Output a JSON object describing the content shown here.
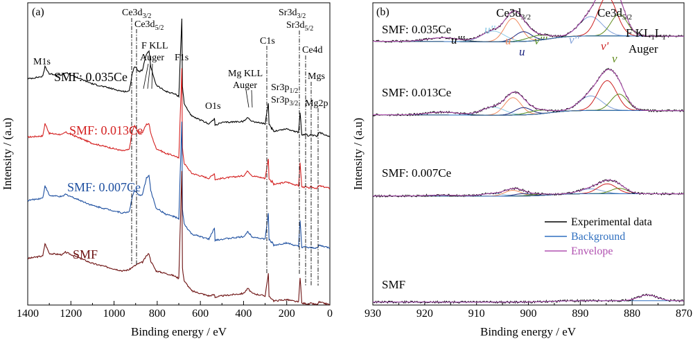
{
  "figure": {
    "panels": [
      {
        "panel_label": "(a)",
        "xlabel": "Binding energy / eV",
        "ylabel": "Intensity / (a.u)",
        "series_labels": [
          "SMF: 0.035Ce",
          "SMF: 0.013Ce",
          "SMF: 0.007Ce",
          "SMF"
        ],
        "peak_annotations": {
          "m1s": "M1s",
          "ce3d32": "Ce3d",
          "ce3d32_sub": "3/2",
          "ce3d52": "Ce3d",
          "ce3d52_sub": "5/2",
          "fkll_line1": "F KLL",
          "fkll_line2": "Auger",
          "f1s": "F1s",
          "o1s": "O1s",
          "mgkll_line1": "Mg KLL",
          "mgkll_line2": "Auger",
          "c1s": "C1s",
          "sr3d32": "Sr3d",
          "sr3d32_sub": "3/2",
          "sr3d52": "Sr3d",
          "sr3d52_sub": "5/2",
          "sr3p12": "Sr3p",
          "sr3p12_sub": "1/2",
          "sr3p32": "Sr3p",
          "sr3p32_sub": "3/2",
          "ce4d": "Ce4d",
          "mgs": "Mgs",
          "mg2p": "Mg2p"
        }
      },
      {
        "panel_label": "(b)",
        "xlabel": "Binding energy / eV",
        "ylabel": "Intensity / (a.u)",
        "series_labels": [
          "SMF: 0.035Ce",
          "SMF: 0.013Ce",
          "SMF: 0.007Ce",
          "SMF"
        ],
        "region_labels": {
          "ce3d32": "Ce3d",
          "ce3d32_sub": "3/2",
          "ce3d52": "Ce3d",
          "ce3d52_sub": "5/2",
          "fkl_main": "F KL",
          "fkl_sub1": "1",
          "fkl_mid": "L",
          "fkl_sub2": "1",
          "fkl_line2": "Auger"
        },
        "component_labels": [
          "u'''",
          "u''",
          "u'",
          "u",
          "v'''",
          "v''",
          "v'",
          "v"
        ],
        "legend": [
          "Experimental data",
          "Background",
          "Envelope"
        ]
      }
    ]
  },
  "colors": {
    "black": "#000000",
    "red": "#d42020",
    "blue": "#1d4fa0",
    "maroon": "#6b0f0f",
    "background_line": "#2f6fbf",
    "envelope": "#b050b0",
    "u3": "#000000",
    "u2": "#8ecae6",
    "u1": "#f08a5d",
    "u0": "#1a237e",
    "v3": "#4e8a1a",
    "v2": "#7f9fd9",
    "v1": "#cc1f1f",
    "v0": "#5f8a1a"
  },
  "chart_data": [
    {
      "type": "line",
      "title": "(a)",
      "xlabel": "Binding energy / eV",
      "ylabel": "Intensity / (a.u)",
      "xlim": [
        1400,
        0
      ],
      "x_reversed": true,
      "xticks": [
        1400,
        1200,
        1000,
        800,
        600,
        400,
        200,
        0
      ],
      "yticks": "none",
      "series": [
        {
          "name": "SMF: 0.035Ce",
          "color": "#000000",
          "offset": 3,
          "x": [
            1400,
            1330,
            1320,
            1300,
            1240,
            1225,
            1100,
            960,
            930,
            915,
            905,
            885,
            868,
            850,
            838,
            830,
            805,
            760,
            720,
            700,
            686,
            683,
            675,
            640,
            560,
            535,
            532,
            500,
            400,
            380,
            360,
            300,
            285,
            282,
            270,
            268,
            260,
            200,
            145,
            138,
            130,
            110,
            100,
            90,
            60,
            50,
            0
          ],
          "y": [
            0.5,
            0.52,
            0.6,
            0.54,
            0.53,
            0.55,
            0.46,
            0.4,
            0.4,
            0.55,
            0.6,
            0.56,
            0.57,
            0.7,
            0.72,
            0.6,
            0.45,
            0.4,
            0.38,
            0.36,
            0.98,
            0.44,
            0.3,
            0.2,
            0.14,
            0.18,
            0.13,
            0.15,
            0.16,
            0.19,
            0.16,
            0.14,
            0.3,
            0.14,
            0.1,
            0.11,
            0.08,
            0.1,
            0.07,
            0.23,
            0.05,
            0.06,
            0.04,
            0.05,
            0.04,
            0.07,
            0.04
          ]
        },
        {
          "name": "SMF: 0.013Ce",
          "color": "#d42020",
          "offset": 2,
          "x": [
            1400,
            1330,
            1320,
            1300,
            1240,
            1225,
            1100,
            960,
            930,
            915,
            905,
            885,
            868,
            850,
            838,
            830,
            805,
            760,
            720,
            700,
            686,
            683,
            675,
            640,
            560,
            535,
            532,
            500,
            400,
            380,
            360,
            300,
            285,
            282,
            270,
            268,
            260,
            200,
            145,
            138,
            130,
            110,
            100,
            90,
            60,
            50,
            0
          ],
          "y": [
            0.45,
            0.46,
            0.56,
            0.48,
            0.47,
            0.49,
            0.4,
            0.34,
            0.35,
            0.5,
            0.54,
            0.48,
            0.49,
            0.55,
            0.56,
            0.48,
            0.36,
            0.32,
            0.3,
            0.28,
            1.0,
            0.36,
            0.24,
            0.16,
            0.12,
            0.16,
            0.11,
            0.12,
            0.14,
            0.18,
            0.14,
            0.12,
            0.28,
            0.12,
            0.09,
            0.1,
            0.07,
            0.09,
            0.06,
            0.24,
            0.05,
            0.05,
            0.04,
            0.05,
            0.04,
            0.06,
            0.04
          ]
        },
        {
          "name": "SMF: 0.007Ce",
          "color": "#1d4fa0",
          "offset": 1,
          "x": [
            1400,
            1330,
            1320,
            1300,
            1240,
            1225,
            1100,
            960,
            930,
            915,
            905,
            885,
            868,
            850,
            838,
            830,
            805,
            760,
            720,
            700,
            686,
            683,
            675,
            640,
            560,
            535,
            532,
            500,
            400,
            380,
            360,
            300,
            285,
            282,
            270,
            268,
            260,
            200,
            145,
            138,
            130,
            110,
            100,
            90,
            60,
            50,
            0
          ],
          "y": [
            0.42,
            0.44,
            0.54,
            0.46,
            0.45,
            0.47,
            0.38,
            0.32,
            0.33,
            0.45,
            0.5,
            0.46,
            0.47,
            0.6,
            0.62,
            0.5,
            0.36,
            0.31,
            0.29,
            0.27,
            1.05,
            0.35,
            0.23,
            0.15,
            0.11,
            0.2,
            0.1,
            0.11,
            0.13,
            0.17,
            0.13,
            0.11,
            0.32,
            0.11,
            0.08,
            0.09,
            0.06,
            0.08,
            0.05,
            0.26,
            0.04,
            0.05,
            0.04,
            0.04,
            0.04,
            0.06,
            0.04
          ]
        },
        {
          "name": "SMF",
          "color": "#6b0f0f",
          "offset": 0,
          "x": [
            1400,
            1330,
            1320,
            1300,
            1240,
            1225,
            1100,
            960,
            930,
            915,
            905,
            885,
            868,
            850,
            838,
            830,
            805,
            760,
            720,
            700,
            686,
            683,
            675,
            640,
            560,
            535,
            532,
            500,
            400,
            380,
            360,
            300,
            285,
            282,
            270,
            268,
            260,
            200,
            145,
            138,
            130,
            110,
            100,
            90,
            60,
            50,
            0
          ],
          "y": [
            0.4,
            0.42,
            0.52,
            0.44,
            0.43,
            0.45,
            0.36,
            0.3,
            0.31,
            0.33,
            0.34,
            0.36,
            0.37,
            0.42,
            0.44,
            0.38,
            0.3,
            0.28,
            0.26,
            0.24,
            1.1,
            0.32,
            0.22,
            0.14,
            0.1,
            0.11,
            0.09,
            0.1,
            0.12,
            0.16,
            0.12,
            0.1,
            0.28,
            0.1,
            0.07,
            0.08,
            0.06,
            0.07,
            0.05,
            0.25,
            0.04,
            0.04,
            0.03,
            0.04,
            0.03,
            0.05,
            0.03
          ]
        }
      ]
    },
    {
      "type": "line",
      "title": "(b)",
      "xlabel": "Binding energy / eV",
      "ylabel": "Intensity / (a.u)",
      "xlim": [
        930,
        870
      ],
      "x_reversed": true,
      "xticks": [
        930,
        920,
        910,
        900,
        890,
        880,
        870
      ],
      "yticks": "none",
      "series": [
        {
          "name": "SMF: 0.035Ce",
          "peak_height": 1.0,
          "offset": 3
        },
        {
          "name": "SMF: 0.013Ce",
          "peak_height": 0.75,
          "offset": 2
        },
        {
          "name": "SMF: 0.007Ce",
          "peak_height": 0.25,
          "offset": 1
        },
        {
          "name": "SMF",
          "peak_height": 0.02,
          "offset": 0
        }
      ],
      "components": [
        {
          "name": "u'''",
          "center": 916.5,
          "height": 0.08
        },
        {
          "name": "u''",
          "center": 906.8,
          "height": 0.22
        },
        {
          "name": "u'",
          "center": 903.0,
          "height": 0.48
        },
        {
          "name": "u",
          "center": 901.0,
          "height": 0.2
        },
        {
          "name": "v'''",
          "center": 898.0,
          "height": 0.1
        },
        {
          "name": "v''",
          "center": 888.0,
          "height": 0.4
        },
        {
          "name": "v'",
          "center": 884.8,
          "height": 0.82
        },
        {
          "name": "v",
          "center": 882.5,
          "height": 0.45
        }
      ],
      "legend_position": "center-right",
      "legend": [
        "Experimental data",
        "Background",
        "Envelope"
      ]
    }
  ]
}
